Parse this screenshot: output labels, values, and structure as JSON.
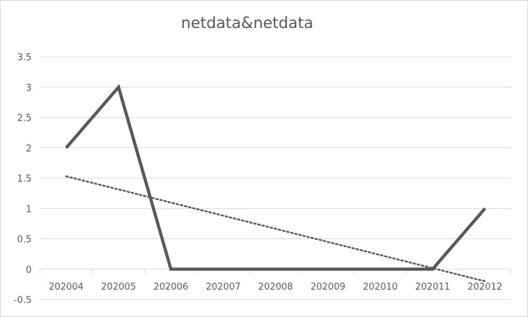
{
  "chart_data": {
    "type": "line",
    "title": "netdata&netdata",
    "xlabel": "",
    "ylabel": "",
    "categories": [
      "202004",
      "202005",
      "202006",
      "202007",
      "202008",
      "202009",
      "202010",
      "202011",
      "202012"
    ],
    "series": [
      {
        "values": [
          2,
          3,
          0,
          0,
          0,
          0,
          0,
          0,
          1
        ],
        "color": "#595959",
        "style": "solid"
      }
    ],
    "trendline": {
      "type": "linear",
      "start": 1.53,
      "end": -0.2,
      "color": "#595959",
      "style": "dotted"
    },
    "ylim": [
      -0.5,
      3.5
    ],
    "yticks": [
      "-0.5",
      "0",
      "0.5",
      "1",
      "1.5",
      "2",
      "2.5",
      "3",
      "3.5"
    ],
    "grid": true,
    "legend": "none"
  }
}
